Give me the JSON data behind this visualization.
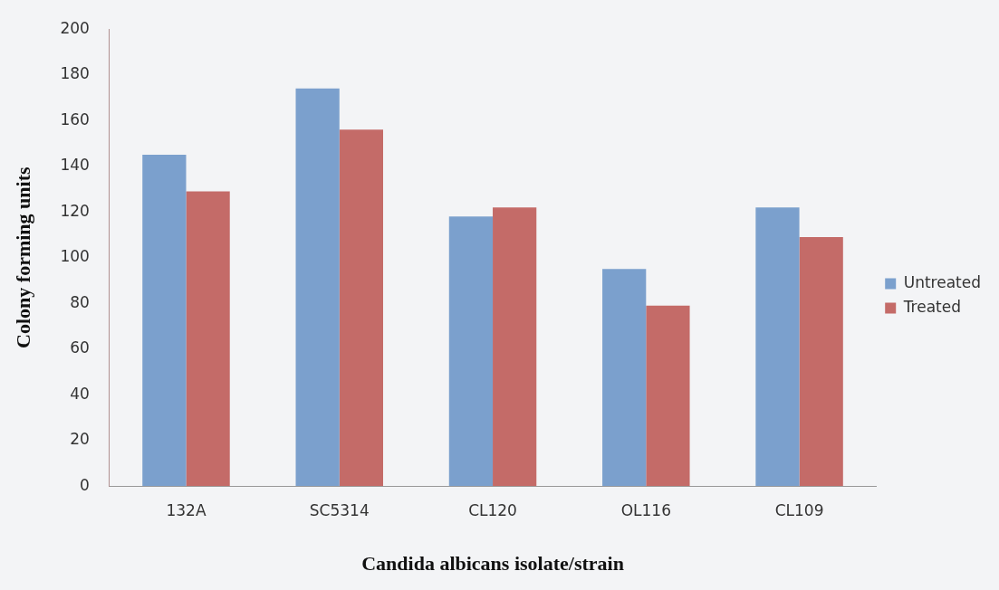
{
  "chart_data": {
    "type": "bar",
    "xlabel": "Candida albicans isolate/strain",
    "ylabel": "Colony forming units",
    "categories": [
      "132A",
      "SC5314",
      "CL120",
      "OL116",
      "CL109"
    ],
    "series": [
      {
        "name": "Untreated",
        "color": "#7ba0cd",
        "values": [
          145,
          174,
          118,
          95,
          122
        ]
      },
      {
        "name": "Treated",
        "color": "#c46b68",
        "values": [
          129,
          156,
          122,
          79,
          109
        ]
      }
    ],
    "ylim": [
      0,
      200
    ],
    "yticks": [
      0,
      20,
      40,
      60,
      80,
      100,
      120,
      140,
      160,
      180,
      200
    ],
    "grid": false,
    "legend": "right"
  }
}
